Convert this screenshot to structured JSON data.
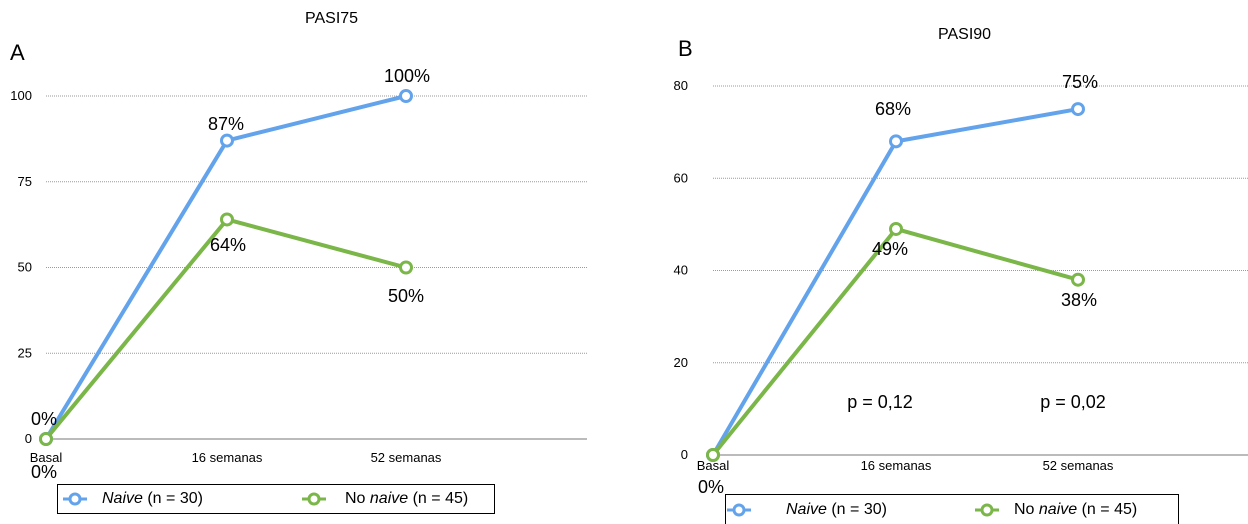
{
  "chart_data": [
    {
      "type": "line",
      "panel": "A",
      "title": "PASI75",
      "categories": [
        "Basal",
        "16 semanas",
        "52 semanas"
      ],
      "ylim": [
        0,
        100
      ],
      "yticks": [
        0,
        25,
        50,
        75,
        100
      ],
      "grid": true,
      "legend_position": "bottom",
      "series": [
        {
          "name_em": "Naive",
          "name_rest": " (n = 30)",
          "values": [
            0,
            87,
            100
          ],
          "labels": [
            "0%",
            "87%",
            "100%"
          ],
          "color": "#63a3ec"
        },
        {
          "name_pre": "No ",
          "name_em": "naive",
          "name_rest": " (n = 45)",
          "values": [
            0,
            64,
            50
          ],
          "labels": [
            "0%",
            "64%",
            "50%"
          ],
          "color": "#7ab648"
        }
      ],
      "annotations": []
    },
    {
      "type": "line",
      "panel": "B",
      "title": "PASI90",
      "categories": [
        "Basal",
        "16 semanas",
        "52 semanas"
      ],
      "ylim": [
        0,
        80
      ],
      "yticks": [
        0,
        20,
        40,
        60,
        80
      ],
      "grid": true,
      "legend_position": "bottom",
      "series": [
        {
          "name_em": "Naive",
          "name_rest": " (n = 30)",
          "values": [
            0,
            68,
            75
          ],
          "labels": [
            "0%",
            "68%",
            "75%"
          ],
          "color": "#63a3ec"
        },
        {
          "name_pre": "No ",
          "name_em": "naive",
          "name_rest": " (n = 45)",
          "values": [
            0,
            49,
            38
          ],
          "labels": [
            "",
            "49%",
            "38%"
          ],
          "color": "#7ab648"
        }
      ],
      "annotations": [
        "p = 0,12",
        "p = 0,02"
      ]
    }
  ]
}
